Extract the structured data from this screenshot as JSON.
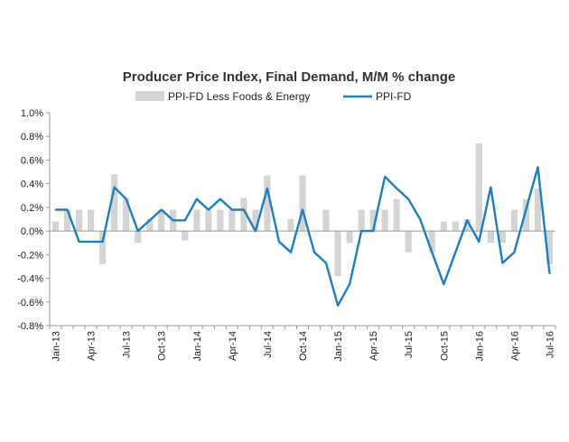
{
  "chart_data": {
    "type": "bar+line",
    "title": "Producer Price Index, Final Demand, M/M % change",
    "xlabel": "",
    "ylabel": "",
    "ylim": [
      -0.8,
      1.0
    ],
    "yticks": [
      {
        "value": 1.0,
        "label": "1.0%"
      },
      {
        "value": 0.8,
        "label": "0.8%"
      },
      {
        "value": 0.6,
        "label": "0.6%"
      },
      {
        "value": 0.4,
        "label": "0.4%"
      },
      {
        "value": 0.2,
        "label": "0.2%"
      },
      {
        "value": 0.0,
        "label": "0.0%"
      },
      {
        "value": -0.2,
        "label": "-0.2%"
      },
      {
        "value": -0.4,
        "label": "-0.4%"
      },
      {
        "value": -0.6,
        "label": "-0.6%"
      },
      {
        "value": -0.8,
        "label": "-0.8%"
      }
    ],
    "grid": false,
    "legend_position": "top",
    "categories": [
      "Jan-13",
      "Feb-13",
      "Mar-13",
      "Apr-13",
      "May-13",
      "Jun-13",
      "Jul-13",
      "Aug-13",
      "Sep-13",
      "Oct-13",
      "Nov-13",
      "Dec-13",
      "Jan-14",
      "Feb-14",
      "Mar-14",
      "Apr-14",
      "May-14",
      "Jun-14",
      "Jul-14",
      "Aug-14",
      "Sep-14",
      "Oct-14",
      "Nov-14",
      "Dec-14",
      "Jan-15",
      "Feb-15",
      "Mar-15",
      "Apr-15",
      "May-15",
      "Jun-15",
      "Jul-15",
      "Aug-15",
      "Sep-15",
      "Oct-15",
      "Nov-15",
      "Dec-15",
      "Jan-16",
      "Feb-16",
      "Mar-16",
      "Apr-16",
      "May-16",
      "Jun-16",
      "Jul-16"
    ],
    "tick_labels": [
      {
        "index": 0,
        "label": "Jan-13"
      },
      {
        "index": 3,
        "label": "Apr-13"
      },
      {
        "index": 6,
        "label": "Jul-13"
      },
      {
        "index": 9,
        "label": "Oct-13"
      },
      {
        "index": 12,
        "label": "Jan-14"
      },
      {
        "index": 15,
        "label": "Apr-14"
      },
      {
        "index": 18,
        "label": "Jul-14"
      },
      {
        "index": 21,
        "label": "Oct-14"
      },
      {
        "index": 24,
        "label": "Jan-15"
      },
      {
        "index": 27,
        "label": "Apr-15"
      },
      {
        "index": 30,
        "label": "Jul-15"
      },
      {
        "index": 33,
        "label": "Oct-15"
      },
      {
        "index": 36,
        "label": "Jan-16"
      },
      {
        "index": 39,
        "label": "Apr-16"
      },
      {
        "index": 42,
        "label": "Jul-16"
      }
    ],
    "series": [
      {
        "name": "PPI-FD Less Foods & Energy",
        "type": "bar",
        "color": "#d4d4d4",
        "values": [
          0.08,
          0.18,
          0.18,
          0.18,
          -0.28,
          0.48,
          0.28,
          -0.1,
          0.1,
          0.18,
          0.18,
          -0.08,
          0.18,
          0.18,
          0.18,
          0.18,
          0.28,
          0.18,
          0.47,
          0.0,
          0.1,
          0.47,
          0.0,
          0.18,
          -0.38,
          -0.1,
          0.18,
          0.18,
          0.18,
          0.27,
          -0.18,
          0.0,
          -0.18,
          0.08,
          0.08,
          0.1,
          0.74,
          -0.1,
          -0.1,
          0.18,
          0.27,
          0.36,
          -0.28
        ]
      },
      {
        "name": "PPI-FD",
        "type": "line",
        "color": "#1f7ec0",
        "values": [
          0.18,
          0.18,
          -0.09,
          -0.09,
          -0.09,
          0.37,
          0.27,
          0.0,
          0.09,
          0.18,
          0.09,
          0.09,
          0.27,
          0.18,
          0.27,
          0.18,
          0.18,
          0.0,
          0.36,
          -0.09,
          -0.18,
          0.18,
          -0.18,
          -0.27,
          -0.63,
          -0.45,
          0.0,
          0.0,
          0.46,
          0.36,
          0.27,
          0.1,
          -0.18,
          -0.45,
          -0.18,
          0.09,
          -0.09,
          0.37,
          -0.27,
          -0.18,
          0.18,
          0.54,
          -0.36
        ]
      }
    ]
  }
}
